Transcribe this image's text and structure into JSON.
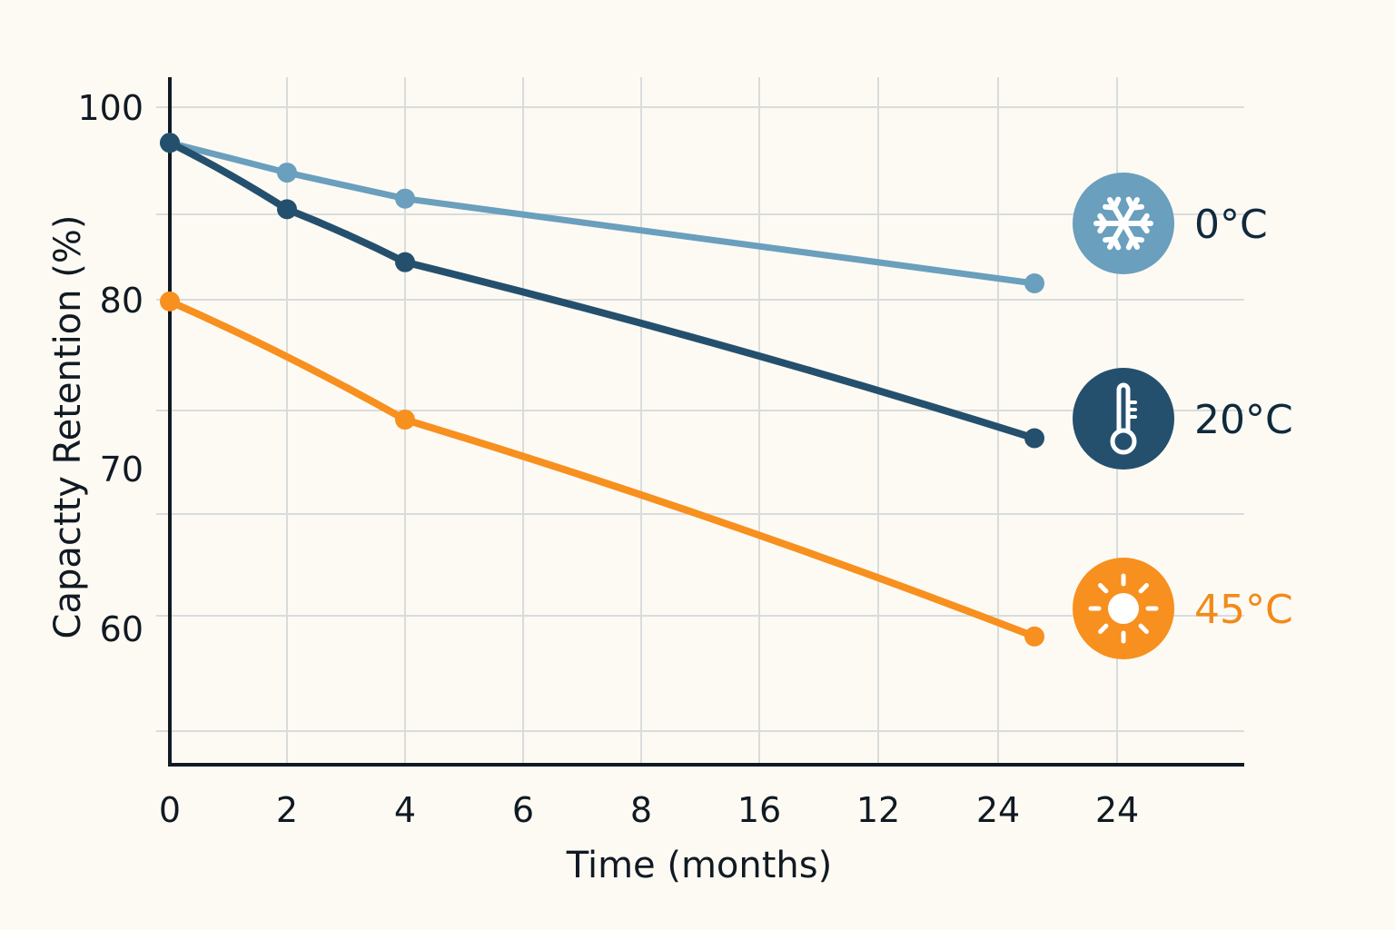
{
  "chart_data": {
    "type": "line",
    "title": "",
    "xlabel": "Time (months)",
    "ylabel": "Capactty Retention (%)",
    "x_tick_labels": [
      "0",
      "2",
      "4",
      "6",
      "8",
      "16",
      "12",
      "24",
      "24"
    ],
    "y_tick_labels": [
      "100",
      "80",
      "70",
      "60"
    ],
    "grid": true,
    "legend_placement": "right",
    "series": [
      {
        "name": "0°C",
        "icon": "snowflake-icon",
        "color": "#6a9fbd",
        "label_color": "#0f2a3d",
        "points": [
          {
            "x": 0,
            "y": 96.3
          },
          {
            "x": 2,
            "y": 93.2
          },
          {
            "x": 4,
            "y": 90.5
          },
          {
            "x": 24,
            "y": 81.7
          }
        ]
      },
      {
        "name": "20°C",
        "icon": "thermometer-icon",
        "color": "#24506e",
        "label_color": "#0f2a3d",
        "points": [
          {
            "x": 0,
            "y": 96.3
          },
          {
            "x": 2,
            "y": 89.4
          },
          {
            "x": 4,
            "y": 83.9
          },
          {
            "x": 24,
            "y": 71.8
          }
        ]
      },
      {
        "name": "45°C",
        "icon": "sun-icon",
        "color": "#f7901e",
        "label_color": "#f28a1a",
        "points": [
          {
            "x": 0,
            "y": 79.9
          },
          {
            "x": 4,
            "y": 72.9
          },
          {
            "x": 24,
            "y": 59.5
          }
        ]
      }
    ]
  }
}
